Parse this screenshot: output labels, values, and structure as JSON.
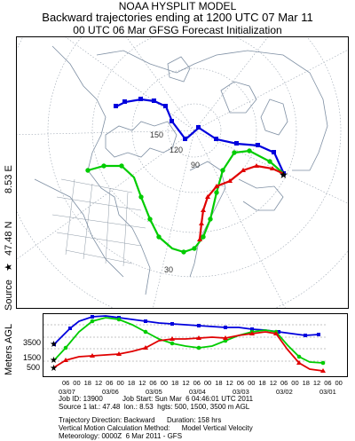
{
  "header": {
    "line1": "NOAA HYSPLIT MODEL",
    "line2": "Backward trajectories ending at 1200 UTC 07 Mar 11",
    "line3": "00 UTC 06 Mar    GFSG  Forecast Initialization"
  },
  "source": {
    "label": "Source",
    "star": "★",
    "lat": "47.48 N",
    "lon": "8.53 E"
  },
  "map": {
    "lat_labels": [
      "150",
      "120",
      "90",
      "30"
    ],
    "colors": {
      "red": "#e00000",
      "blue": "#0000dd",
      "green": "#00cc00"
    }
  },
  "altitude_panel": {
    "ylabel": "Meters AGL",
    "left_levels": [
      "3500",
      "1500",
      "500"
    ],
    "right_levels": [
      "6000",
      "4500",
      "3000",
      "1500"
    ],
    "time_ticks": [
      "06",
      "00",
      "18",
      "12",
      "06",
      "00",
      "18",
      "12",
      "06",
      "00",
      "18",
      "12",
      "06",
      "00",
      "18",
      "12",
      "06",
      "00",
      "18",
      "12",
      "06",
      "00",
      "18",
      "12",
      "06",
      "00"
    ],
    "date_ticks": [
      "03/07",
      "03/06",
      "03/05",
      "03/04",
      "03/03",
      "03/02",
      "03/01"
    ]
  },
  "meta": {
    "line1": "Job ID: 13900          Job Start: Sun Mar  6 04:46:01 UTC 2011",
    "line2": "Source 1 lat.: 47.48  lon.: 8.53  hgts: 500, 1500, 3500 m AGL",
    "line3": "Trajectory Direction: Backward      Duration: 158 hrs",
    "line4": "Vertical Motion Calculation Method:      Model Vertical Velocity",
    "line5": "Meteorology: 0000Z  6 Mar 2011 - GFS"
  }
}
